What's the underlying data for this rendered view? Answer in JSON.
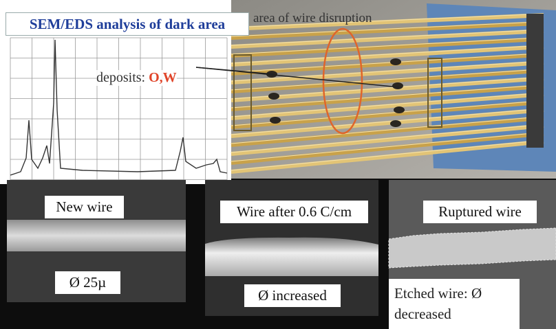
{
  "figure_title": "SEM/EDS analysis of dark area",
  "photo_annotation": "area of wire disruption",
  "spectrum_annotation": {
    "text": "deposits:",
    "elements": "O,W"
  },
  "panels": [
    {
      "label": "New wire",
      "caption": "Ø 25µ"
    },
    {
      "label": "Wire after 0.6 C/cm",
      "caption": "Ø increased"
    },
    {
      "label": "Ruptured wire",
      "caption": "Etched wire: Ø decreased"
    }
  ]
}
